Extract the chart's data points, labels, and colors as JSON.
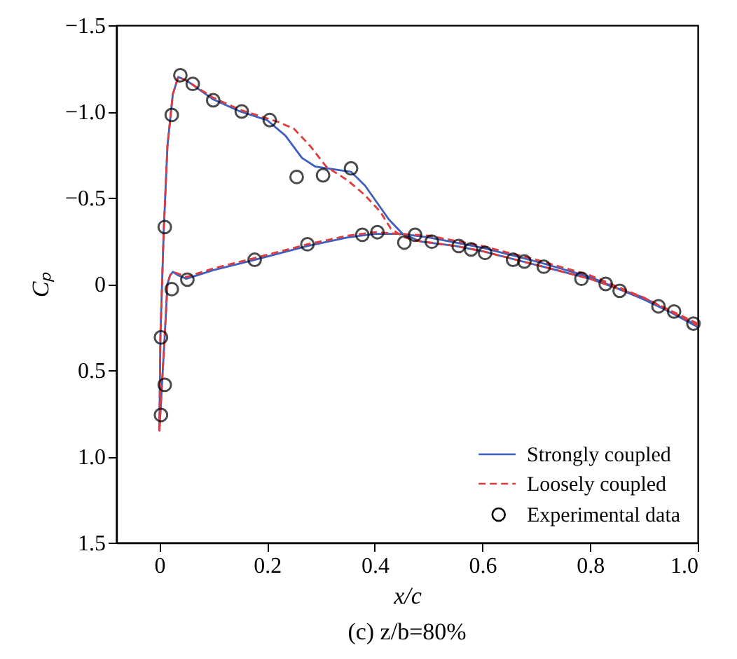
{
  "chart_data": {
    "type": "line",
    "title": "(c) z/b=80%",
    "xlabel": "x/c",
    "ylabel": "Cₚ",
    "xlim": [
      -0.08,
      1.0
    ],
    "xticks": [
      0,
      0.2,
      0.4,
      0.6,
      0.8,
      {
        "value": 1,
        "label": "1.0"
      }
    ],
    "ylim": [
      1.5,
      -1.5
    ],
    "yticks": [
      -1.5,
      {
        "value": -1,
        "label": "−1.0"
      },
      -0.5,
      0,
      0.5,
      {
        "value": 1,
        "label": "1.0"
      },
      1.5
    ],
    "grid": false,
    "legend": "bottom right",
    "line_style": "solid",
    "marker": "none",
    "series": [
      {
        "name": "Strongly coupled",
        "color": "#3f5fbf",
        "x": [
          1.0,
          0.9,
          0.8,
          0.7,
          0.6,
          0.5,
          0.45,
          0.4,
          0.35,
          0.275,
          0.177,
          0.1,
          0.05,
          0.035,
          0.025,
          0.02,
          0.015,
          0.01,
          0.0,
          0.002,
          0.008,
          0.015,
          0.025,
          0.035,
          0.05,
          0.1,
          0.15,
          0.2,
          0.234,
          0.265,
          0.29,
          0.356,
          0.382,
          0.426,
          0.452,
          0.486,
          0.55,
          0.6,
          0.7,
          0.8,
          0.9,
          1.0
        ],
        "values": [
          0.24,
          0.09,
          -0.04,
          -0.13,
          -0.21,
          -0.27,
          -0.29,
          -0.29,
          -0.27,
          -0.22,
          -0.14,
          -0.08,
          -0.03,
          -0.05,
          -0.07,
          -0.05,
          0.0,
          0.3,
          0.85,
          0.3,
          -0.3,
          -0.8,
          -1.1,
          -1.2,
          -1.18,
          -1.07,
          -1.0,
          -0.95,
          -0.86,
          -0.73,
          -0.68,
          -0.65,
          -0.57,
          -0.375,
          -0.29,
          -0.245,
          -0.22,
          -0.19,
          -0.11,
          -0.03,
          0.08,
          0.25
        ]
      },
      {
        "name": "Loosely coupled",
        "color": "#e03c3c",
        "line_style": "dashed",
        "x": [
          1.0,
          0.9,
          0.8,
          0.7,
          0.6,
          0.5,
          0.45,
          0.4,
          0.35,
          0.275,
          0.177,
          0.1,
          0.05,
          0.035,
          0.025,
          0.02,
          0.015,
          0.01,
          0.0,
          0.002,
          0.008,
          0.015,
          0.025,
          0.035,
          0.05,
          0.1,
          0.15,
          0.2,
          0.22,
          0.25,
          0.28,
          0.31,
          0.35,
          0.38,
          0.41,
          0.43,
          0.455,
          0.48,
          0.55,
          0.6,
          0.7,
          0.8,
          0.9,
          1.0
        ],
        "values": [
          0.23,
          0.08,
          -0.05,
          -0.14,
          -0.22,
          -0.28,
          -0.29,
          -0.3,
          -0.28,
          -0.23,
          -0.15,
          -0.09,
          -0.04,
          -0.06,
          -0.07,
          -0.05,
          0.0,
          0.3,
          0.85,
          0.3,
          -0.3,
          -0.8,
          -1.1,
          -1.2,
          -1.18,
          -1.08,
          -1.01,
          -0.96,
          -0.94,
          -0.9,
          -0.8,
          -0.68,
          -0.6,
          -0.52,
          -0.42,
          -0.32,
          -0.27,
          -0.25,
          -0.22,
          -0.19,
          -0.11,
          -0.03,
          0.08,
          0.24
        ]
      },
      {
        "name": "Experimental data",
        "type": "scatter",
        "marker": "circle",
        "color": "#000000",
        "x": [
          0.003,
          0.01,
          0.003,
          0.01,
          0.023,
          0.039,
          0.062,
          0.1,
          0.153,
          0.205,
          0.255,
          0.304,
          0.356,
          0.455,
          0.475,
          0.506,
          0.556,
          0.579,
          0.605,
          0.657,
          0.678,
          0.714,
          0.784,
          0.829,
          0.855,
          0.927,
          0.956,
          0.992,
          0.023,
          0.052,
          0.177,
          0.275,
          0.377,
          0.405
        ],
        "values": [
          0.76,
          0.585,
          0.31,
          -0.33,
          -0.98,
          -1.21,
          -1.16,
          -1.065,
          -1.0,
          -0.95,
          -0.62,
          -0.63,
          -0.67,
          -0.24,
          -0.285,
          -0.245,
          -0.22,
          -0.2,
          -0.18,
          -0.14,
          -0.13,
          -0.1,
          -0.03,
          0.0,
          0.04,
          0.13,
          0.16,
          0.23,
          0.03,
          -0.025,
          -0.14,
          -0.23,
          -0.285,
          -0.3
        ]
      }
    ]
  }
}
